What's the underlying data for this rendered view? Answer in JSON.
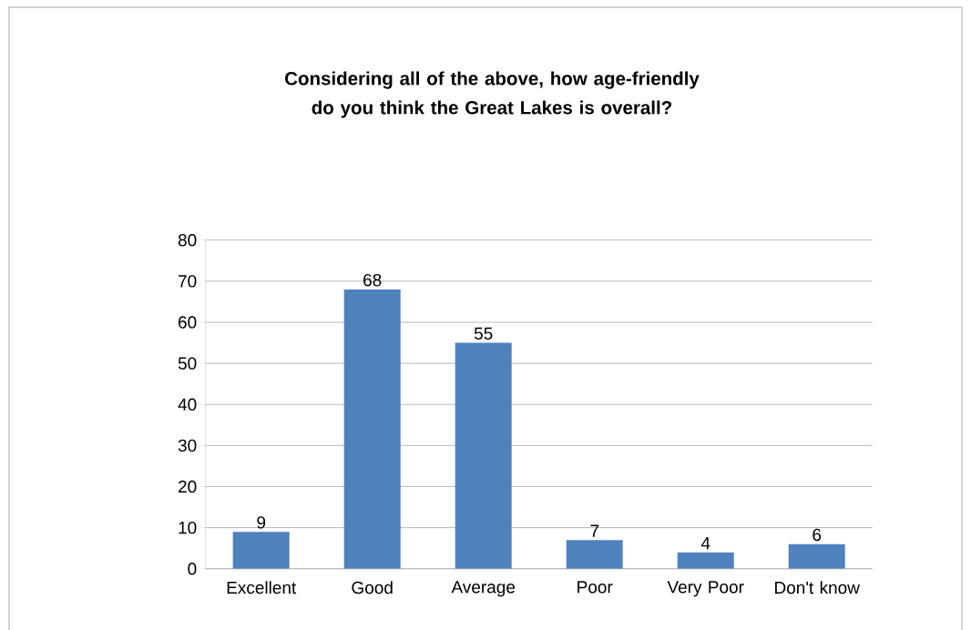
{
  "chart_data": {
    "type": "bar",
    "title": "Considering all of the above, how age-friendly do you think the Great Lakes is overall?",
    "categories": [
      "Excellent",
      "Good",
      "Average",
      "Poor",
      "Very Poor",
      "Don't know"
    ],
    "values": [
      9,
      68,
      55,
      7,
      4,
      6
    ],
    "color": "#4f81bd",
    "ylim": [
      0,
      80
    ],
    "yticks": [
      0,
      10,
      20,
      30,
      40,
      50,
      60,
      70,
      80
    ],
    "grid": "y",
    "data_labels": true
  }
}
